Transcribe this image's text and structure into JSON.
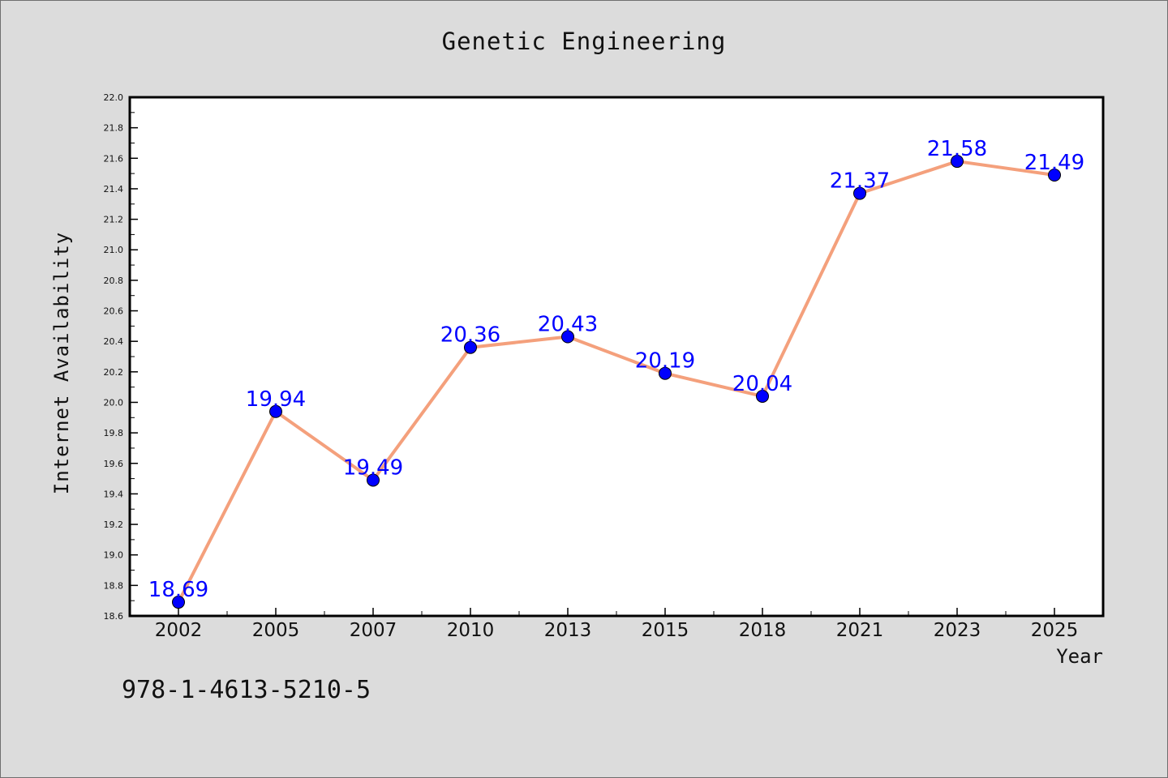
{
  "chart_data": {
    "type": "line",
    "title": "Genetic Engineering",
    "xlabel": "Year",
    "ylabel": "Internet Availability",
    "categories": [
      "2002",
      "2005",
      "2007",
      "2010",
      "2013",
      "2015",
      "2018",
      "2021",
      "2023",
      "2025"
    ],
    "series": [
      {
        "values": [
          18.69,
          19.94,
          19.49,
          20.36,
          20.43,
          20.19,
          20.04,
          21.37,
          21.58,
          21.49
        ]
      }
    ],
    "data_labels": [
      "18.69",
      "19.94",
      "19.49",
      "20.36",
      "20.43",
      "20.19",
      "20.04",
      "21.37",
      "21.58",
      "21.49"
    ],
    "ylim": [
      18.6,
      22.0
    ],
    "yticks": [
      "18.6",
      "18.8",
      "19.0",
      "19.2",
      "19.4",
      "19.6",
      "19.8",
      "20.0",
      "20.2",
      "20.4",
      "20.6",
      "20.8",
      "21.0",
      "21.2",
      "21.4",
      "21.6",
      "21.8",
      "22.0"
    ],
    "grid": false,
    "legend": "none",
    "colors": {
      "line": "#f4a07c",
      "marker": "#0000ff",
      "label": "#0000ff",
      "background": "#dcdcdc",
      "plot_background": "#ffffff"
    }
  },
  "footer": {
    "isbn": "978-1-4613-5210-5"
  }
}
